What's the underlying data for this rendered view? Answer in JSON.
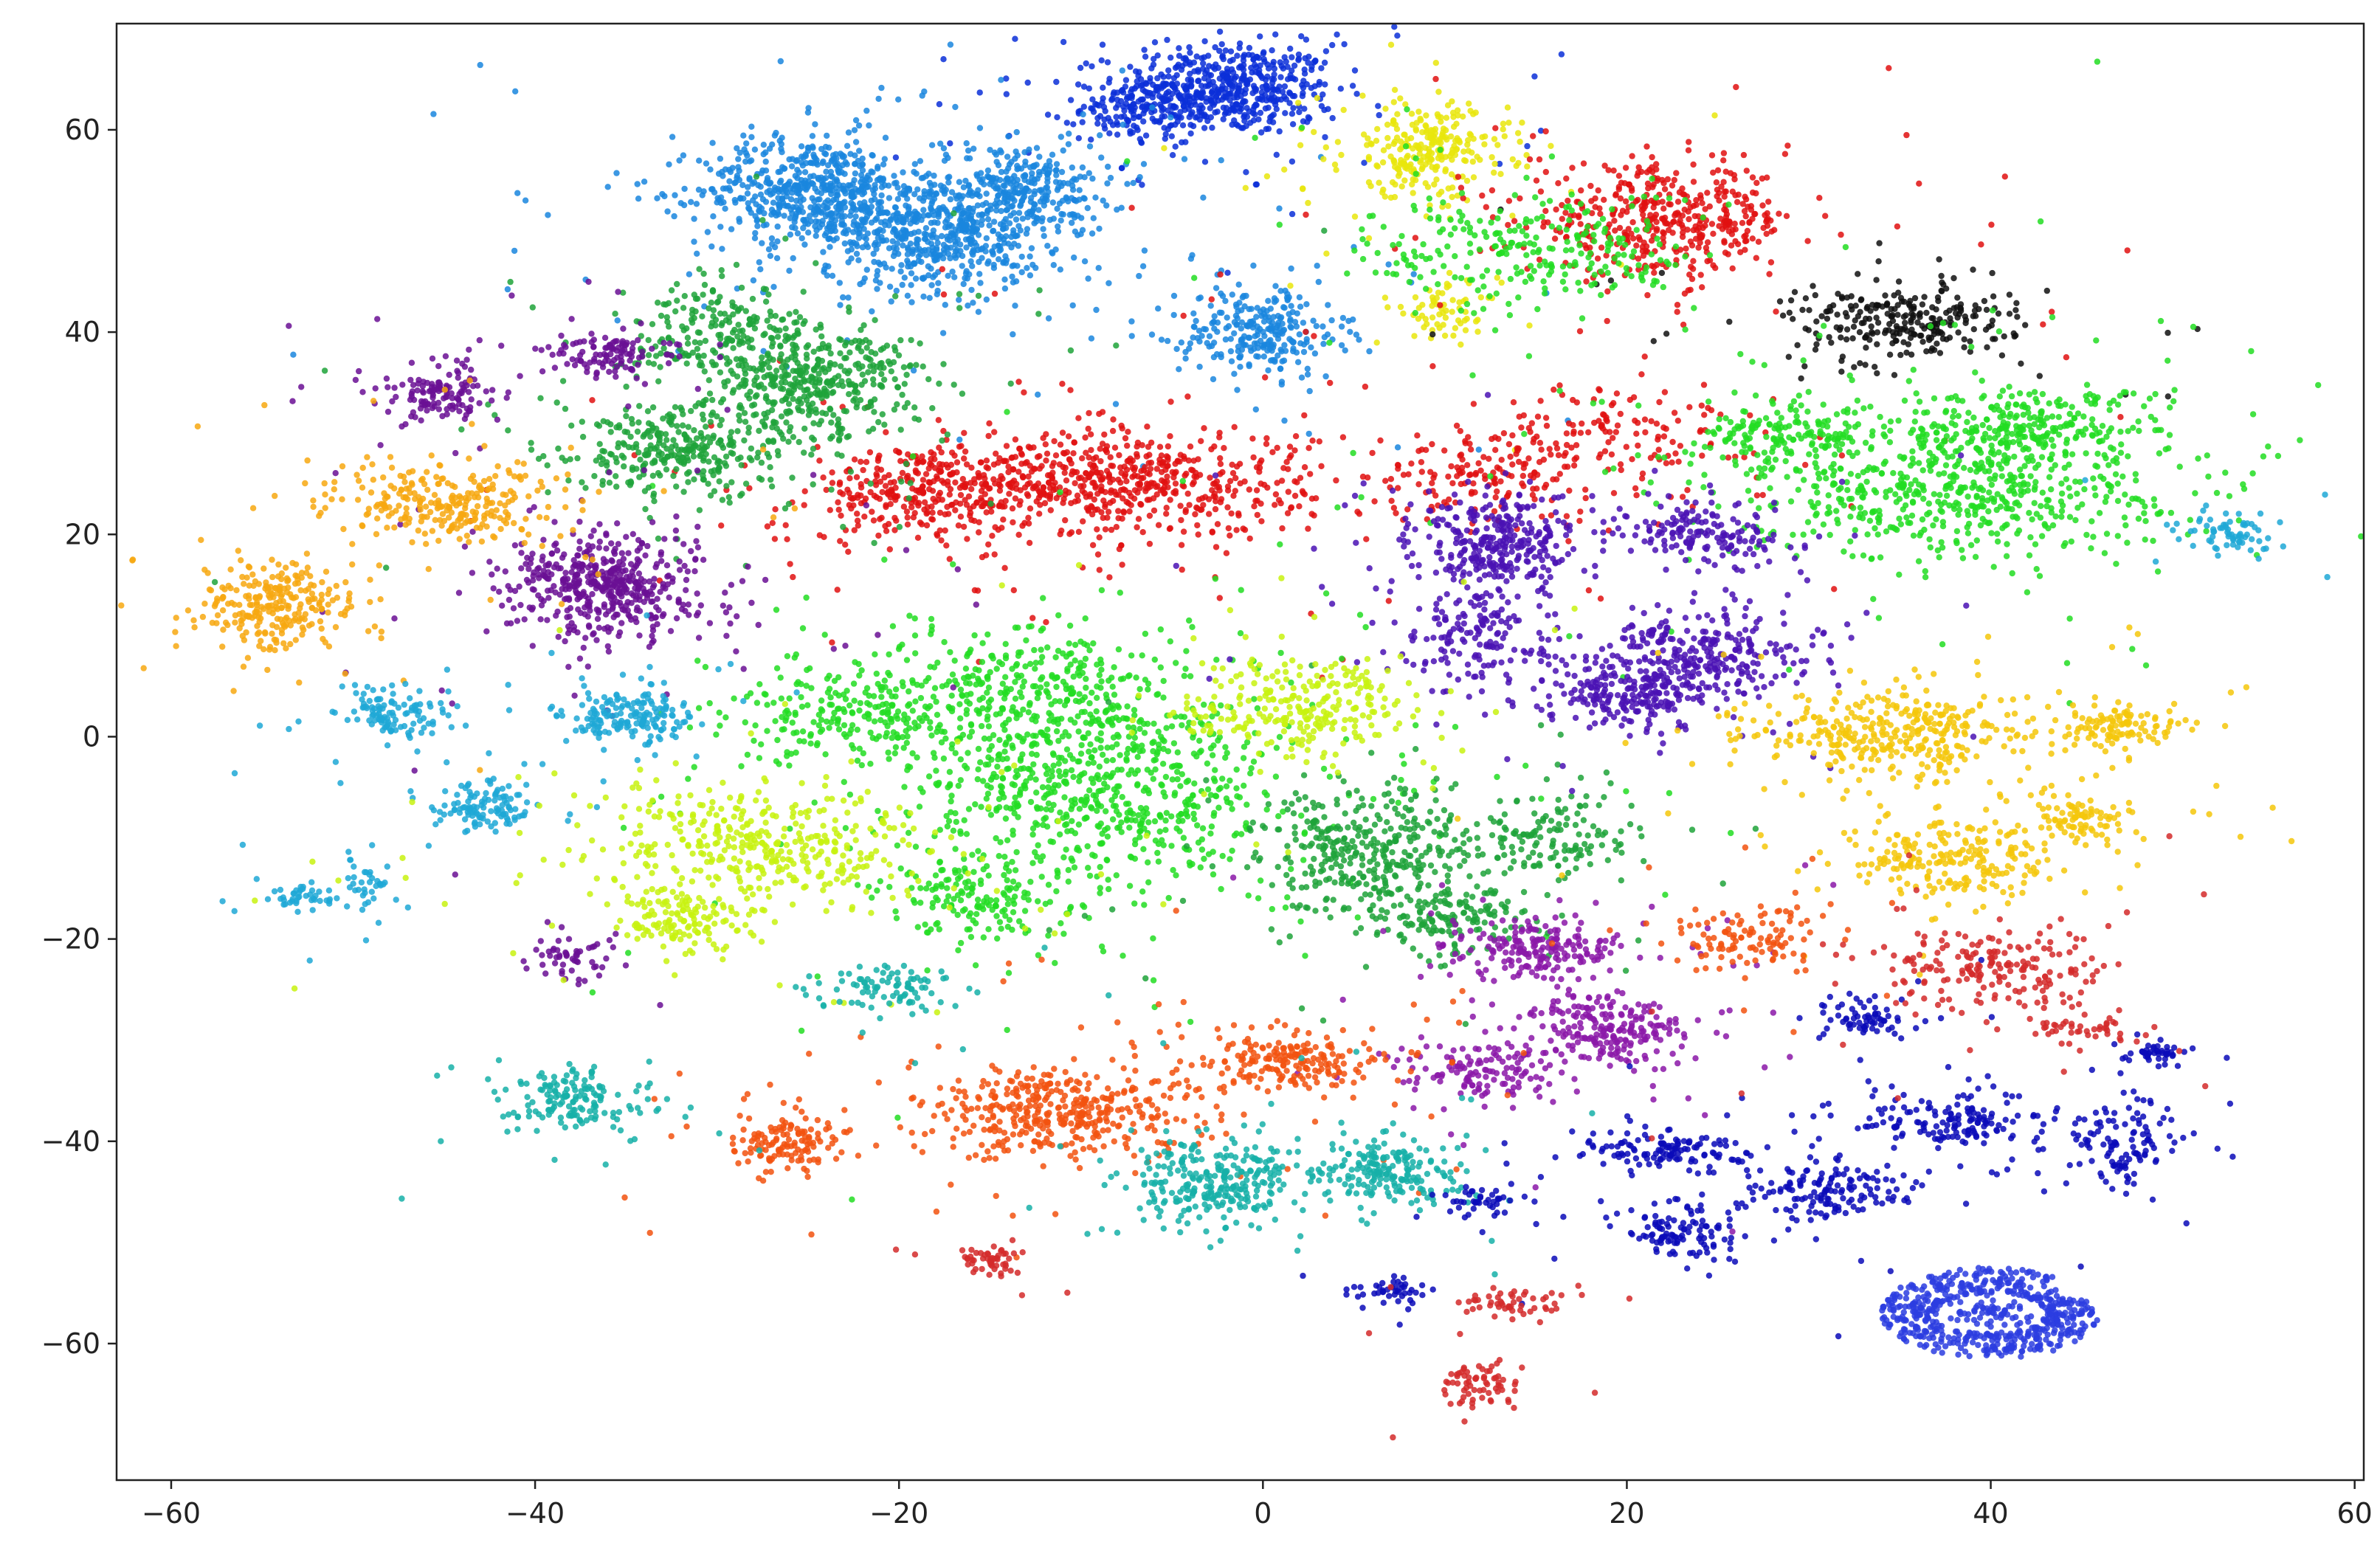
{
  "chart_data": {
    "type": "scatter",
    "title": "",
    "xlabel": "",
    "ylabel": "",
    "xlim": [
      -63,
      60.5
    ],
    "ylim": [
      -73.5,
      70.5
    ],
    "xticks": [
      -60,
      -40,
      -20,
      0,
      20,
      40,
      60
    ],
    "yticks": [
      -60,
      -40,
      -20,
      0,
      20,
      40,
      60
    ],
    "xtick_labels": [
      "−60",
      "−40",
      "−20",
      "0",
      "20",
      "40",
      "60"
    ],
    "ytick_labels": [
      "−60",
      "−40",
      "−20",
      "0",
      "20",
      "40",
      "60"
    ],
    "grid": false,
    "legend": "none",
    "series": [
      {
        "color": "#0a2fd8",
        "clusters": [
          {
            "center": [
              -2,
              64
            ],
            "spread": [
              4,
              3
            ],
            "weight": 1.2
          },
          {
            "center": [
              -7,
              62
            ],
            "spread": [
              2,
              2
            ],
            "weight": 0.3
          }
        ]
      },
      {
        "color": "#1a86de",
        "clusters": [
          {
            "center": [
              -25,
              54
            ],
            "spread": [
              4,
              3.5
            ],
            "weight": 1.2
          },
          {
            "center": [
              -18,
              50
            ],
            "spread": [
              4,
              4
            ],
            "weight": 1.3
          },
          {
            "center": [
              -13,
              54
            ],
            "spread": [
              3,
              3
            ],
            "weight": 0.6
          },
          {
            "center": [
              0,
              40
            ],
            "spread": [
              3,
              3
            ],
            "weight": 0.6
          }
        ]
      },
      {
        "color": "#e9e60c",
        "clusters": [
          {
            "center": [
              9,
              58
            ],
            "spread": [
              3,
              3
            ],
            "weight": 0.6
          },
          {
            "center": [
              10,
              42
            ],
            "spread": [
              2,
              2
            ],
            "weight": 0.15
          }
        ]
      },
      {
        "color": "#e01010",
        "clusters": [
          {
            "center": [
              22,
              51
            ],
            "spread": [
              5,
              3.5
            ],
            "weight": 1.0
          },
          {
            "center": [
              -8,
              25
            ],
            "spread": [
              7,
              3.5
            ],
            "weight": 1.4
          },
          {
            "center": [
              -19,
              24
            ],
            "spread": [
              4,
              3
            ],
            "weight": 0.6
          },
          {
            "center": [
              12,
              26
            ],
            "spread": [
              4,
              3
            ],
            "weight": 0.35
          },
          {
            "center": [
              20,
              30
            ],
            "spread": [
              5,
              3
            ],
            "weight": 0.3
          }
        ]
      },
      {
        "color": "#111111",
        "clusters": [
          {
            "center": [
              35,
              41
            ],
            "spread": [
              4,
              2.5
            ],
            "weight": 0.6
          }
        ]
      },
      {
        "color": "#22dd22",
        "clusters": [
          {
            "center": [
              38,
              25
            ],
            "spread": [
              8,
              5
            ],
            "weight": 1.5
          },
          {
            "center": [
              42,
              31
            ],
            "spread": [
              5,
              2.5
            ],
            "weight": 0.5
          },
          {
            "center": [
              15,
              48
            ],
            "spread": [
              6,
              4
            ],
            "weight": 0.6
          },
          {
            "center": [
              -9,
              -5
            ],
            "spread": [
              7,
              6
            ],
            "weight": 1.6
          },
          {
            "center": [
              -13,
              5
            ],
            "spread": [
              6,
              4
            ],
            "weight": 0.8
          },
          {
            "center": [
              -23,
              2
            ],
            "spread": [
              4,
              3
            ],
            "weight": 0.4
          },
          {
            "center": [
              -15,
              -16
            ],
            "spread": [
              4,
              3
            ],
            "weight": 0.4
          },
          {
            "center": [
              29,
              30
            ],
            "spread": [
              3,
              2
            ],
            "weight": 0.3
          }
        ]
      },
      {
        "color": "#1fa33a",
        "clusters": [
          {
            "center": [
              -25,
              35
            ],
            "spread": [
              4,
              4
            ],
            "weight": 1.0
          },
          {
            "center": [
              -32,
              28
            ],
            "spread": [
              4,
              3
            ],
            "weight": 0.7
          },
          {
            "center": [
              -30,
              40
            ],
            "spread": [
              3,
              3
            ],
            "weight": 0.4
          },
          {
            "center": [
              6,
              -11
            ],
            "spread": [
              4,
              4
            ],
            "weight": 0.8
          },
          {
            "center": [
              10,
              -18
            ],
            "spread": [
              3,
              2
            ],
            "weight": 0.35
          },
          {
            "center": [
              16,
              -10
            ],
            "spread": [
              3,
              3
            ],
            "weight": 0.3
          }
        ]
      },
      {
        "color": "#6a0f94",
        "clusters": [
          {
            "center": [
              -36,
              15
            ],
            "spread": [
              3.5,
              3.5
            ],
            "weight": 1.1
          },
          {
            "center": [
              -45,
              34
            ],
            "spread": [
              2,
              2
            ],
            "weight": 0.3
          },
          {
            "center": [
              -36,
              38
            ],
            "spread": [
              2,
              1.5
            ],
            "weight": 0.25
          },
          {
            "center": [
              -38,
              -22
            ],
            "spread": [
              1.5,
              1.5
            ],
            "weight": 0.12
          }
        ]
      },
      {
        "color": "#f7a810",
        "clusters": [
          {
            "center": [
              -54,
              13
            ],
            "spread": [
              3,
              3
            ],
            "weight": 0.6
          },
          {
            "center": [
              -45,
              23
            ],
            "spread": [
              4,
              2.5
            ],
            "weight": 0.6
          }
        ]
      },
      {
        "color": "#4a12b4",
        "clusters": [
          {
            "center": [
              13,
              19
            ],
            "spread": [
              3,
              3
            ],
            "weight": 0.7
          },
          {
            "center": [
              24,
              20
            ],
            "spread": [
              3,
              2
            ],
            "weight": 0.35
          },
          {
            "center": [
              24,
              8
            ],
            "spread": [
              4,
              3
            ],
            "weight": 0.7
          },
          {
            "center": [
              20,
              4
            ],
            "spread": [
              2.5,
              2
            ],
            "weight": 0.4
          },
          {
            "center": [
              12,
              10
            ],
            "spread": [
              3,
              3
            ],
            "weight": 0.35
          }
        ]
      },
      {
        "color": "#1fa8d6",
        "clusters": [
          {
            "center": [
              -35,
              2
            ],
            "spread": [
              2.5,
              2
            ],
            "weight": 0.4
          },
          {
            "center": [
              -48,
              2
            ],
            "spread": [
              2,
              2
            ],
            "weight": 0.25
          },
          {
            "center": [
              -43,
              -7
            ],
            "spread": [
              2,
              1.5
            ],
            "weight": 0.25
          },
          {
            "center": [
              -53,
              -16
            ],
            "spread": [
              1.5,
              1
            ],
            "weight": 0.1
          },
          {
            "center": [
              -49,
              -15
            ],
            "spread": [
              1,
              2
            ],
            "weight": 0.08
          },
          {
            "center": [
              53,
              20
            ],
            "spread": [
              2,
              1.5
            ],
            "weight": 0.15
          }
        ]
      },
      {
        "color": "#f5c70a",
        "clusters": [
          {
            "center": [
              35,
              0
            ],
            "spread": [
              5,
              3
            ],
            "weight": 0.8
          },
          {
            "center": [
              38,
              -12
            ],
            "spread": [
              4,
              3
            ],
            "weight": 0.5
          },
          {
            "center": [
              47,
              1
            ],
            "spread": [
              2.5,
              1.5
            ],
            "weight": 0.25
          },
          {
            "center": [
              45,
              -8
            ],
            "spread": [
              2,
              1.5
            ],
            "weight": 0.2
          }
        ]
      },
      {
        "color": "#c8f20f",
        "clusters": [
          {
            "center": [
              -27,
              -11
            ],
            "spread": [
              6,
              4
            ],
            "weight": 0.9
          },
          {
            "center": [
              -32,
              -18
            ],
            "spread": [
              3,
              2
            ],
            "weight": 0.3
          },
          {
            "center": [
              2,
              3
            ],
            "spread": [
              4,
              3
            ],
            "weight": 0.6
          }
        ]
      },
      {
        "color": "#8b18a8",
        "clusters": [
          {
            "center": [
              15,
              -21
            ],
            "spread": [
              3,
              2
            ],
            "weight": 0.45
          },
          {
            "center": [
              19,
              -29
            ],
            "spread": [
              3,
              2.5
            ],
            "weight": 0.5
          },
          {
            "center": [
              12,
              -33
            ],
            "spread": [
              3,
              2
            ],
            "weight": 0.3
          }
        ]
      },
      {
        "color": "#f2520f",
        "clusters": [
          {
            "center": [
              -11,
              -37
            ],
            "spread": [
              5,
              3
            ],
            "weight": 0.9
          },
          {
            "center": [
              -26,
              -40
            ],
            "spread": [
              2,
              2
            ],
            "weight": 0.3
          },
          {
            "center": [
              2,
              -32
            ],
            "spread": [
              4,
              2
            ],
            "weight": 0.45
          },
          {
            "center": [
              27,
              -20
            ],
            "spread": [
              3,
              2
            ],
            "weight": 0.25
          }
        ]
      },
      {
        "color": "#16b0a8",
        "clusters": [
          {
            "center": [
              -38,
              -36
            ],
            "spread": [
              2.5,
              2
            ],
            "weight": 0.35
          },
          {
            "center": [
              -3,
              -44
            ],
            "spread": [
              3,
              3
            ],
            "weight": 0.6
          },
          {
            "center": [
              7,
              -43
            ],
            "spread": [
              3,
              2
            ],
            "weight": 0.45
          },
          {
            "center": [
              -21,
              -25
            ],
            "spread": [
              2.5,
              1.5
            ],
            "weight": 0.2
          }
        ]
      },
      {
        "color": "#0b0bb8",
        "clusters": [
          {
            "center": [
              22,
              -41
            ],
            "spread": [
              3,
              1.5
            ],
            "weight": 0.3
          },
          {
            "center": [
              31,
              -45
            ],
            "spread": [
              3,
              2
            ],
            "weight": 0.3
          },
          {
            "center": [
              38,
              -38
            ],
            "spread": [
              4,
              2
            ],
            "weight": 0.35
          },
          {
            "center": [
              47,
              -40
            ],
            "spread": [
              2,
              3
            ],
            "weight": 0.25
          },
          {
            "center": [
              23,
              -49
            ],
            "spread": [
              2,
              2
            ],
            "weight": 0.25
          },
          {
            "center": [
              12,
              -46
            ],
            "spread": [
              1.5,
              1
            ],
            "weight": 0.1
          },
          {
            "center": [
              7,
              -55
            ],
            "spread": [
              1.5,
              1
            ],
            "weight": 0.1
          },
          {
            "center": [
              33,
              -28
            ],
            "spread": [
              2,
              1.5
            ],
            "weight": 0.15
          },
          {
            "center": [
              49,
              -31
            ],
            "spread": [
              1,
              1
            ],
            "weight": 0.1
          }
        ]
      },
      {
        "color": "#d42a2a",
        "clusters": [
          {
            "center": [
              40,
              -23
            ],
            "spread": [
              4,
              3
            ],
            "weight": 0.45
          },
          {
            "center": [
              12,
              -64
            ],
            "spread": [
              1.5,
              1.5
            ],
            "weight": 0.15
          },
          {
            "center": [
              -15,
              -52
            ],
            "spread": [
              1.5,
              1
            ],
            "weight": 0.12
          },
          {
            "center": [
              14,
              -56
            ],
            "spread": [
              2,
              1
            ],
            "weight": 0.12
          },
          {
            "center": [
              45,
              -29
            ],
            "spread": [
              2,
              1
            ],
            "weight": 0.1
          }
        ]
      }
    ],
    "ring_cluster": {
      "color": "#2b3de0",
      "center": [
        40,
        -57
      ],
      "rx": [
        3,
        6
      ],
      "ry": [
        2,
        4.5
      ]
    }
  }
}
